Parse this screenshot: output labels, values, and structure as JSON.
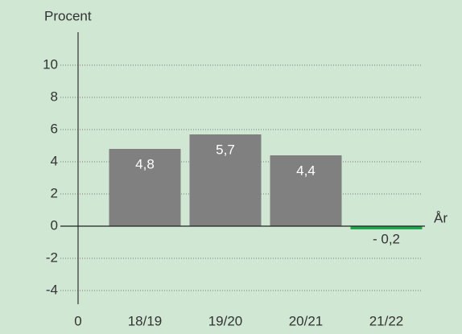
{
  "chart_data": {
    "type": "bar",
    "y_label": "Procent",
    "x_label": "År",
    "x_origin_label": "0",
    "categories": [
      "18/19",
      "19/20",
      "20/21",
      "21/22"
    ],
    "values": [
      4.8,
      5.7,
      4.4,
      -0.2
    ],
    "value_labels": [
      "4,8",
      "5,7",
      "4,4",
      "- 0,2"
    ],
    "colors": [
      "#808080",
      "#808080",
      "#808080",
      "#1aa84a"
    ],
    "ylim": [
      -5,
      12
    ],
    "yticks": [
      -4,
      -2,
      0,
      2,
      4,
      6,
      8,
      10
    ],
    "grid": true
  }
}
